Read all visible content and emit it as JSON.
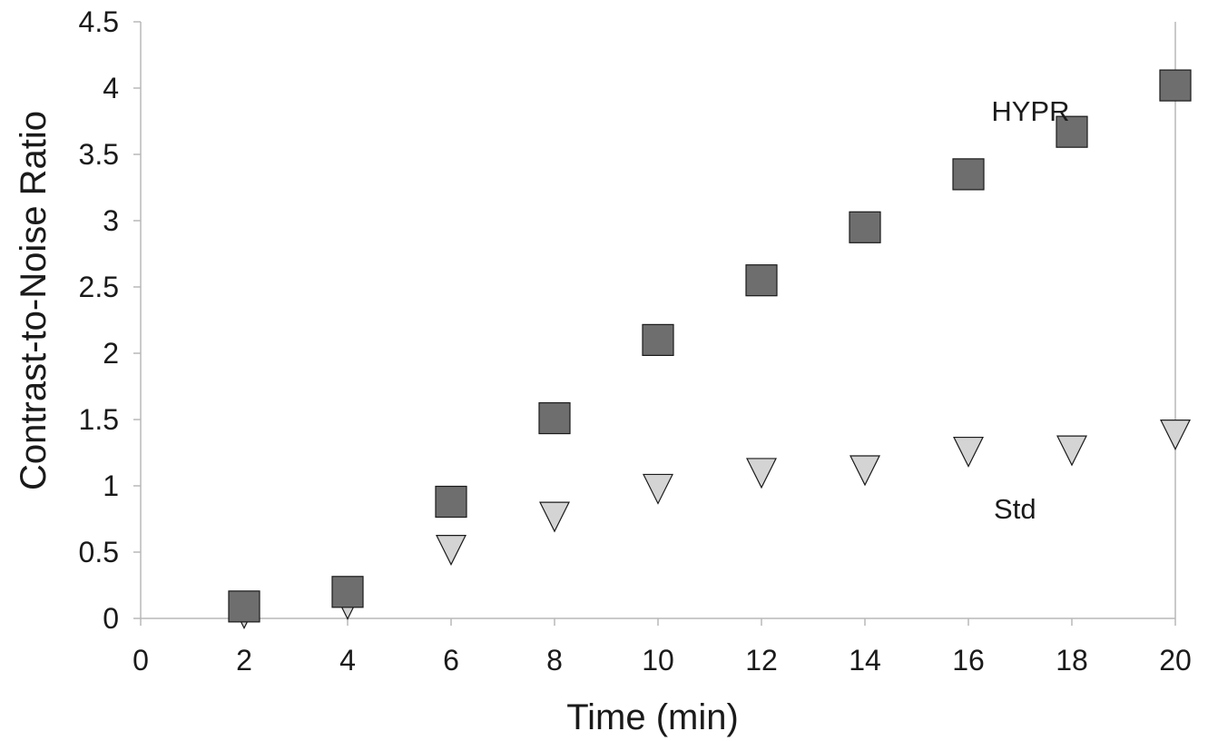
{
  "chart_data": {
    "type": "scatter",
    "xlabel": "Time (min)",
    "ylabel": "Contrast-to-Noise Ratio",
    "xlim": [
      0,
      20
    ],
    "ylim": [
      0,
      4.5
    ],
    "x_ticks": [
      0,
      2,
      4,
      6,
      8,
      10,
      12,
      14,
      16,
      18,
      20
    ],
    "x_tick_labels": [
      "0",
      "2",
      "4",
      "6",
      "8",
      "10",
      "12",
      "14",
      "16",
      "18",
      "20"
    ],
    "y_ticks": [
      0,
      0.5,
      1,
      1.5,
      2,
      2.5,
      3,
      3.5,
      4,
      4.5
    ],
    "y_tick_labels": [
      "0",
      "0.5",
      "1",
      "1.5",
      "2",
      "2.5",
      "3",
      "3.5",
      "4",
      "4.5"
    ],
    "grid": false,
    "series": [
      {
        "name": "HYPR",
        "marker": "square",
        "color": "#6e6e6e",
        "edge_color": "#1a1a1a",
        "points": [
          {
            "x": 2,
            "y": 0.09
          },
          {
            "x": 4,
            "y": 0.2
          },
          {
            "x": 6,
            "y": 0.88
          },
          {
            "x": 8,
            "y": 1.51
          },
          {
            "x": 10,
            "y": 2.1
          },
          {
            "x": 12,
            "y": 2.55
          },
          {
            "x": 14,
            "y": 2.95
          },
          {
            "x": 16,
            "y": 3.35
          },
          {
            "x": 18,
            "y": 3.67
          },
          {
            "x": 20,
            "y": 4.02
          }
        ]
      },
      {
        "name": "Std",
        "marker": "triangle-down",
        "color": "#d4d4d4",
        "edge_color": "#1a1a1a",
        "points": [
          {
            "x": 2,
            "y": 0.05
          },
          {
            "x": 4,
            "y": 0.12
          },
          {
            "x": 6,
            "y": 0.53
          },
          {
            "x": 8,
            "y": 0.78
          },
          {
            "x": 10,
            "y": 0.99
          },
          {
            "x": 12,
            "y": 1.11
          },
          {
            "x": 14,
            "y": 1.13
          },
          {
            "x": 16,
            "y": 1.27
          },
          {
            "x": 18,
            "y": 1.28
          },
          {
            "x": 20,
            "y": 1.4
          }
        ]
      }
    ],
    "annotations": [
      {
        "text": "HYPR",
        "x": 17.2,
        "y": 3.83
      },
      {
        "text": "Std",
        "x": 16.9,
        "y": 0.83
      }
    ]
  }
}
